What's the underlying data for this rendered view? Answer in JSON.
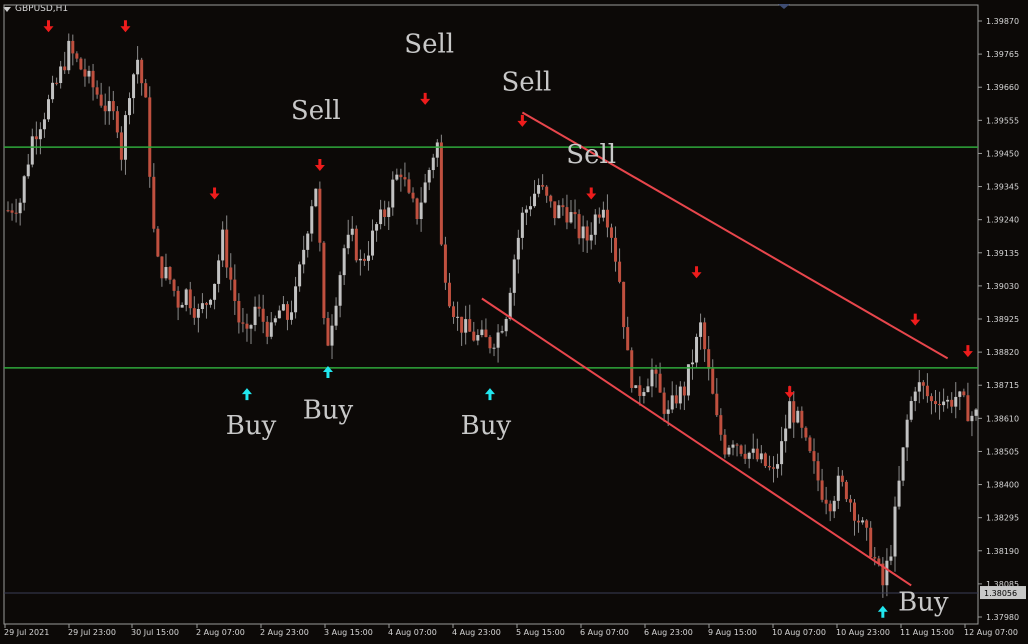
{
  "window": {
    "symbol_title": "GBPUSD,H1"
  },
  "colors": {
    "background": "#0c0907",
    "bull_candle": "#c2c2c2",
    "bear_candle": "#c0503f",
    "level_line": "#2ea83b",
    "channel_line": "#e8464c",
    "sell_arrow": "#ee1c1c",
    "buy_arrow": "#21e6ee",
    "label_text": "#c8c8c8",
    "axis": "#9a9a9a",
    "current_price_line": "#3a3d55"
  },
  "chart_data": {
    "type": "candlestick",
    "symbol": "GBPUSD",
    "timeframe": "H1",
    "y_axis": {
      "ticks": [
        "1.39870",
        "1.39765",
        "1.39660",
        "1.39555",
        "1.39450",
        "1.39345",
        "1.39240",
        "1.39135",
        "1.39030",
        "1.38925",
        "1.38820",
        "1.38715",
        "1.38610",
        "1.38505",
        "1.38400",
        "1.38295",
        "1.38190",
        "1.38085",
        "1.37980"
      ],
      "range": [
        1.3798,
        1.3987
      ]
    },
    "x_axis": {
      "ticks": [
        "29 Jul 2021",
        "29 Jul 23:00",
        "30 Jul 15:00",
        "2 Aug 07:00",
        "2 Aug 23:00",
        "3 Aug 15:00",
        "4 Aug 07:00",
        "4 Aug 23:00",
        "5 Aug 15:00",
        "6 Aug 07:00",
        "6 Aug 23:00",
        "9 Aug 15:00",
        "10 Aug 07:00",
        "10 Aug 23:00",
        "11 Aug 15:00",
        "12 Aug 07:00"
      ]
    },
    "current_price": "1.38056",
    "horizontal_levels": [
      1.3947,
      1.3877
    ],
    "channel": {
      "upper": {
        "from": [
          1.3958,
          127
        ],
        "to": [
          1.388,
          232
        ]
      },
      "lower": {
        "from": [
          1.3899,
          117
        ],
        "to": [
          1.3808,
          223
        ]
      }
    },
    "candle_path": [
      [
        0,
        1.3927
      ],
      [
        3,
        1.393
      ],
      [
        6,
        1.395
      ],
      [
        9,
        1.3958
      ],
      [
        12,
        1.3967
      ],
      [
        15,
        1.3978
      ],
      [
        18,
        1.3972
      ],
      [
        21,
        1.3966
      ],
      [
        24,
        1.396
      ],
      [
        27,
        1.3955
      ],
      [
        28,
        1.3945
      ],
      [
        30,
        1.3966
      ],
      [
        32,
        1.3975
      ],
      [
        34,
        1.396
      ],
      [
        36,
        1.392
      ],
      [
        37,
        1.391
      ],
      [
        40,
        1.3905
      ],
      [
        42,
        1.3898
      ],
      [
        44,
        1.3901
      ],
      [
        47,
        1.3894
      ],
      [
        49,
        1.3898
      ],
      [
        51,
        1.3905
      ],
      [
        53,
        1.3918
      ],
      [
        55,
        1.3905
      ],
      [
        57,
        1.3892
      ],
      [
        59,
        1.3886
      ],
      [
        61,
        1.3896
      ],
      [
        63,
        1.3892
      ],
      [
        65,
        1.3888
      ],
      [
        67,
        1.3895
      ],
      [
        69,
        1.3893
      ],
      [
        71,
        1.39
      ],
      [
        73,
        1.3915
      ],
      [
        75,
        1.393
      ],
      [
        76,
        1.3935
      ],
      [
        77,
        1.3915
      ],
      [
        78,
        1.389
      ],
      [
        79,
        1.3886
      ],
      [
        81,
        1.39
      ],
      [
        83,
        1.3915
      ],
      [
        85,
        1.3918
      ],
      [
        87,
        1.391
      ],
      [
        89,
        1.3915
      ],
      [
        91,
        1.3922
      ],
      [
        93,
        1.3926
      ],
      [
        95,
        1.3935
      ],
      [
        97,
        1.394
      ],
      [
        99,
        1.393
      ],
      [
        101,
        1.3926
      ],
      [
        103,
        1.3935
      ],
      [
        105,
        1.3945
      ],
      [
        106,
        1.3948
      ],
      [
        107,
        1.3915
      ],
      [
        109,
        1.39
      ],
      [
        111,
        1.3892
      ],
      [
        113,
        1.3889
      ],
      [
        115,
        1.3887
      ],
      [
        117,
        1.3886
      ],
      [
        119,
        1.3885
      ],
      [
        121,
        1.3888
      ],
      [
        123,
        1.3895
      ],
      [
        125,
        1.3912
      ],
      [
        127,
        1.3925
      ],
      [
        129,
        1.393
      ],
      [
        131,
        1.3935
      ],
      [
        133,
        1.393
      ],
      [
        135,
        1.3926
      ],
      [
        137,
        1.3928
      ],
      [
        139,
        1.3925
      ],
      [
        141,
        1.392
      ],
      [
        143,
        1.3918
      ],
      [
        145,
        1.3925
      ],
      [
        147,
        1.393
      ],
      [
        149,
        1.392
      ],
      [
        151,
        1.3905
      ],
      [
        153,
        1.388
      ],
      [
        155,
        1.3868
      ],
      [
        157,
        1.3872
      ],
      [
        159,
        1.3876
      ],
      [
        161,
        1.3868
      ],
      [
        163,
        1.3862
      ],
      [
        165,
        1.3868
      ],
      [
        167,
        1.387
      ],
      [
        169,
        1.388
      ],
      [
        171,
        1.389
      ],
      [
        173,
        1.3875
      ],
      [
        175,
        1.386
      ],
      [
        177,
        1.3852
      ],
      [
        179,
        1.3855
      ],
      [
        181,
        1.3852
      ],
      [
        183,
        1.385
      ],
      [
        185,
        1.3848
      ],
      [
        187,
        1.3846
      ],
      [
        189,
        1.3843
      ],
      [
        191,
        1.3852
      ],
      [
        193,
        1.3865
      ],
      [
        195,
        1.386
      ],
      [
        197,
        1.3852
      ],
      [
        199,
        1.3845
      ],
      [
        201,
        1.3838
      ],
      [
        203,
        1.3835
      ],
      [
        205,
        1.384
      ],
      [
        207,
        1.3838
      ],
      [
        209,
        1.3832
      ],
      [
        211,
        1.3826
      ],
      [
        213,
        1.382
      ],
      [
        215,
        1.3812
      ],
      [
        216,
        1.3808
      ],
      [
        218,
        1.382
      ],
      [
        220,
        1.384
      ],
      [
        222,
        1.386
      ],
      [
        224,
        1.3872
      ],
      [
        226,
        1.387
      ],
      [
        228,
        1.3866
      ],
      [
        230,
        1.3868
      ],
      [
        232,
        1.3866
      ],
      [
        234,
        1.3868
      ],
      [
        236,
        1.3865
      ],
      [
        238,
        1.3862
      ]
    ]
  },
  "signals": {
    "sell_arrows": [
      {
        "bar": 10,
        "price": 1.3985
      },
      {
        "bar": 29,
        "price": 1.3985
      },
      {
        "bar": 51,
        "price": 1.3932
      },
      {
        "bar": 77,
        "price": 1.3941
      },
      {
        "bar": 103,
        "price": 1.3962
      },
      {
        "bar": 127,
        "price": 1.3955
      },
      {
        "bar": 144,
        "price": 1.3932
      },
      {
        "bar": 170,
        "price": 1.3907
      },
      {
        "bar": 193,
        "price": 1.3869
      },
      {
        "bar": 224,
        "price": 1.3892
      },
      {
        "bar": 237,
        "price": 1.3882
      }
    ],
    "buy_arrows": [
      {
        "bar": 59,
        "price": 1.3869
      },
      {
        "bar": 79,
        "price": 1.3876
      },
      {
        "bar": 119,
        "price": 1.3869
      },
      {
        "bar": 216,
        "price": 1.38
      }
    ],
    "sell_labels": [
      {
        "text": "Sell",
        "bar": 76,
        "price": 1.3956
      },
      {
        "text": "Sell",
        "bar": 104,
        "price": 1.3977
      },
      {
        "text": "Sell",
        "bar": 128,
        "price": 1.3965
      },
      {
        "text": "Sell",
        "bar": 144,
        "price": 1.3942
      }
    ],
    "buy_labels": [
      {
        "text": "Buy",
        "bar": 60,
        "price": 1.3856
      },
      {
        "text": "Buy",
        "bar": 79,
        "price": 1.3861
      },
      {
        "text": "Buy",
        "bar": 118,
        "price": 1.3856
      },
      {
        "text": "Buy",
        "bar": 226,
        "price": 1.38
      }
    ]
  }
}
